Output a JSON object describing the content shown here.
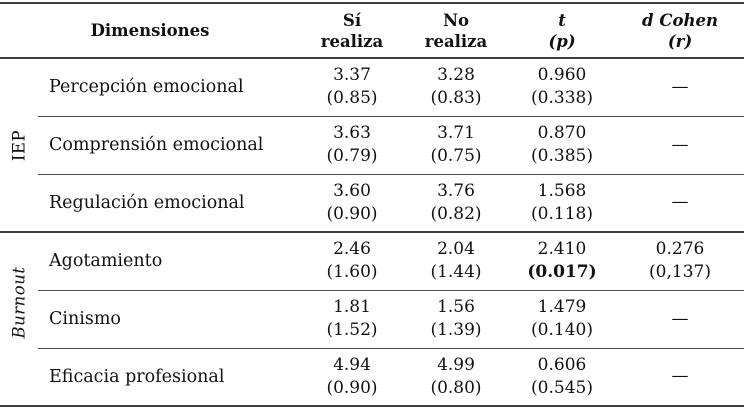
{
  "colors": {
    "background": "#ffffff",
    "text": "#111111",
    "rules": "#3d3d3d"
  },
  "table": {
    "header": {
      "dimensiones": "Dimensiones",
      "si": {
        "l1": "Sí",
        "l2": "realiza"
      },
      "no": {
        "l1": "No",
        "l2": "realiza"
      },
      "t": {
        "l1": "t",
        "l2": "(p)"
      },
      "d": {
        "l1": "d Cohen",
        "l2": "(r)"
      }
    },
    "groups": [
      {
        "label": "IEP"
      },
      {
        "label": "Burnout"
      }
    ],
    "rows": [
      {
        "dimension": "Percepción emocional",
        "si": {
          "m": "3.37",
          "sd": "(0.85)"
        },
        "no": {
          "m": "3.28",
          "sd": "(0.83)"
        },
        "t": {
          "m": "0.960",
          "sd": "(0.338)",
          "bold": false
        },
        "d": {
          "m": "—",
          "sd": ""
        }
      },
      {
        "dimension": "Comprensión emocional",
        "si": {
          "m": "3.63",
          "sd": "(0.79)"
        },
        "no": {
          "m": "3.71",
          "sd": "(0.75)"
        },
        "t": {
          "m": "0.870",
          "sd": "(0.385)",
          "bold": false
        },
        "d": {
          "m": "—",
          "sd": ""
        }
      },
      {
        "dimension": "Regulación emocional",
        "si": {
          "m": "3.60",
          "sd": "(0.90)"
        },
        "no": {
          "m": "3.76",
          "sd": "(0.82)"
        },
        "t": {
          "m": "1.568",
          "sd": "(0.118)",
          "bold": false
        },
        "d": {
          "m": "—",
          "sd": ""
        }
      },
      {
        "dimension": "Agotamiento",
        "si": {
          "m": "2.46",
          "sd": "(1.60)"
        },
        "no": {
          "m": "2.04",
          "sd": "(1.44)"
        },
        "t": {
          "m": "2.410",
          "sd": "(0.017)",
          "bold": true
        },
        "d": {
          "m": "0.276",
          "sd": "(0,137)"
        }
      },
      {
        "dimension": "Cinismo",
        "si": {
          "m": "1.81",
          "sd": "(1.52)"
        },
        "no": {
          "m": "1.56",
          "sd": "(1.39)"
        },
        "t": {
          "m": "1.479",
          "sd": "(0.140)",
          "bold": false
        },
        "d": {
          "m": "—",
          "sd": ""
        }
      },
      {
        "dimension": "Eficacia profesional",
        "si": {
          "m": "4.94",
          "sd": "(0.90)"
        },
        "no": {
          "m": "4.99",
          "sd": "(0.80)"
        },
        "t": {
          "m": "0.606",
          "sd": "(0.545)",
          "bold": false
        },
        "d": {
          "m": "—",
          "sd": ""
        }
      }
    ]
  }
}
